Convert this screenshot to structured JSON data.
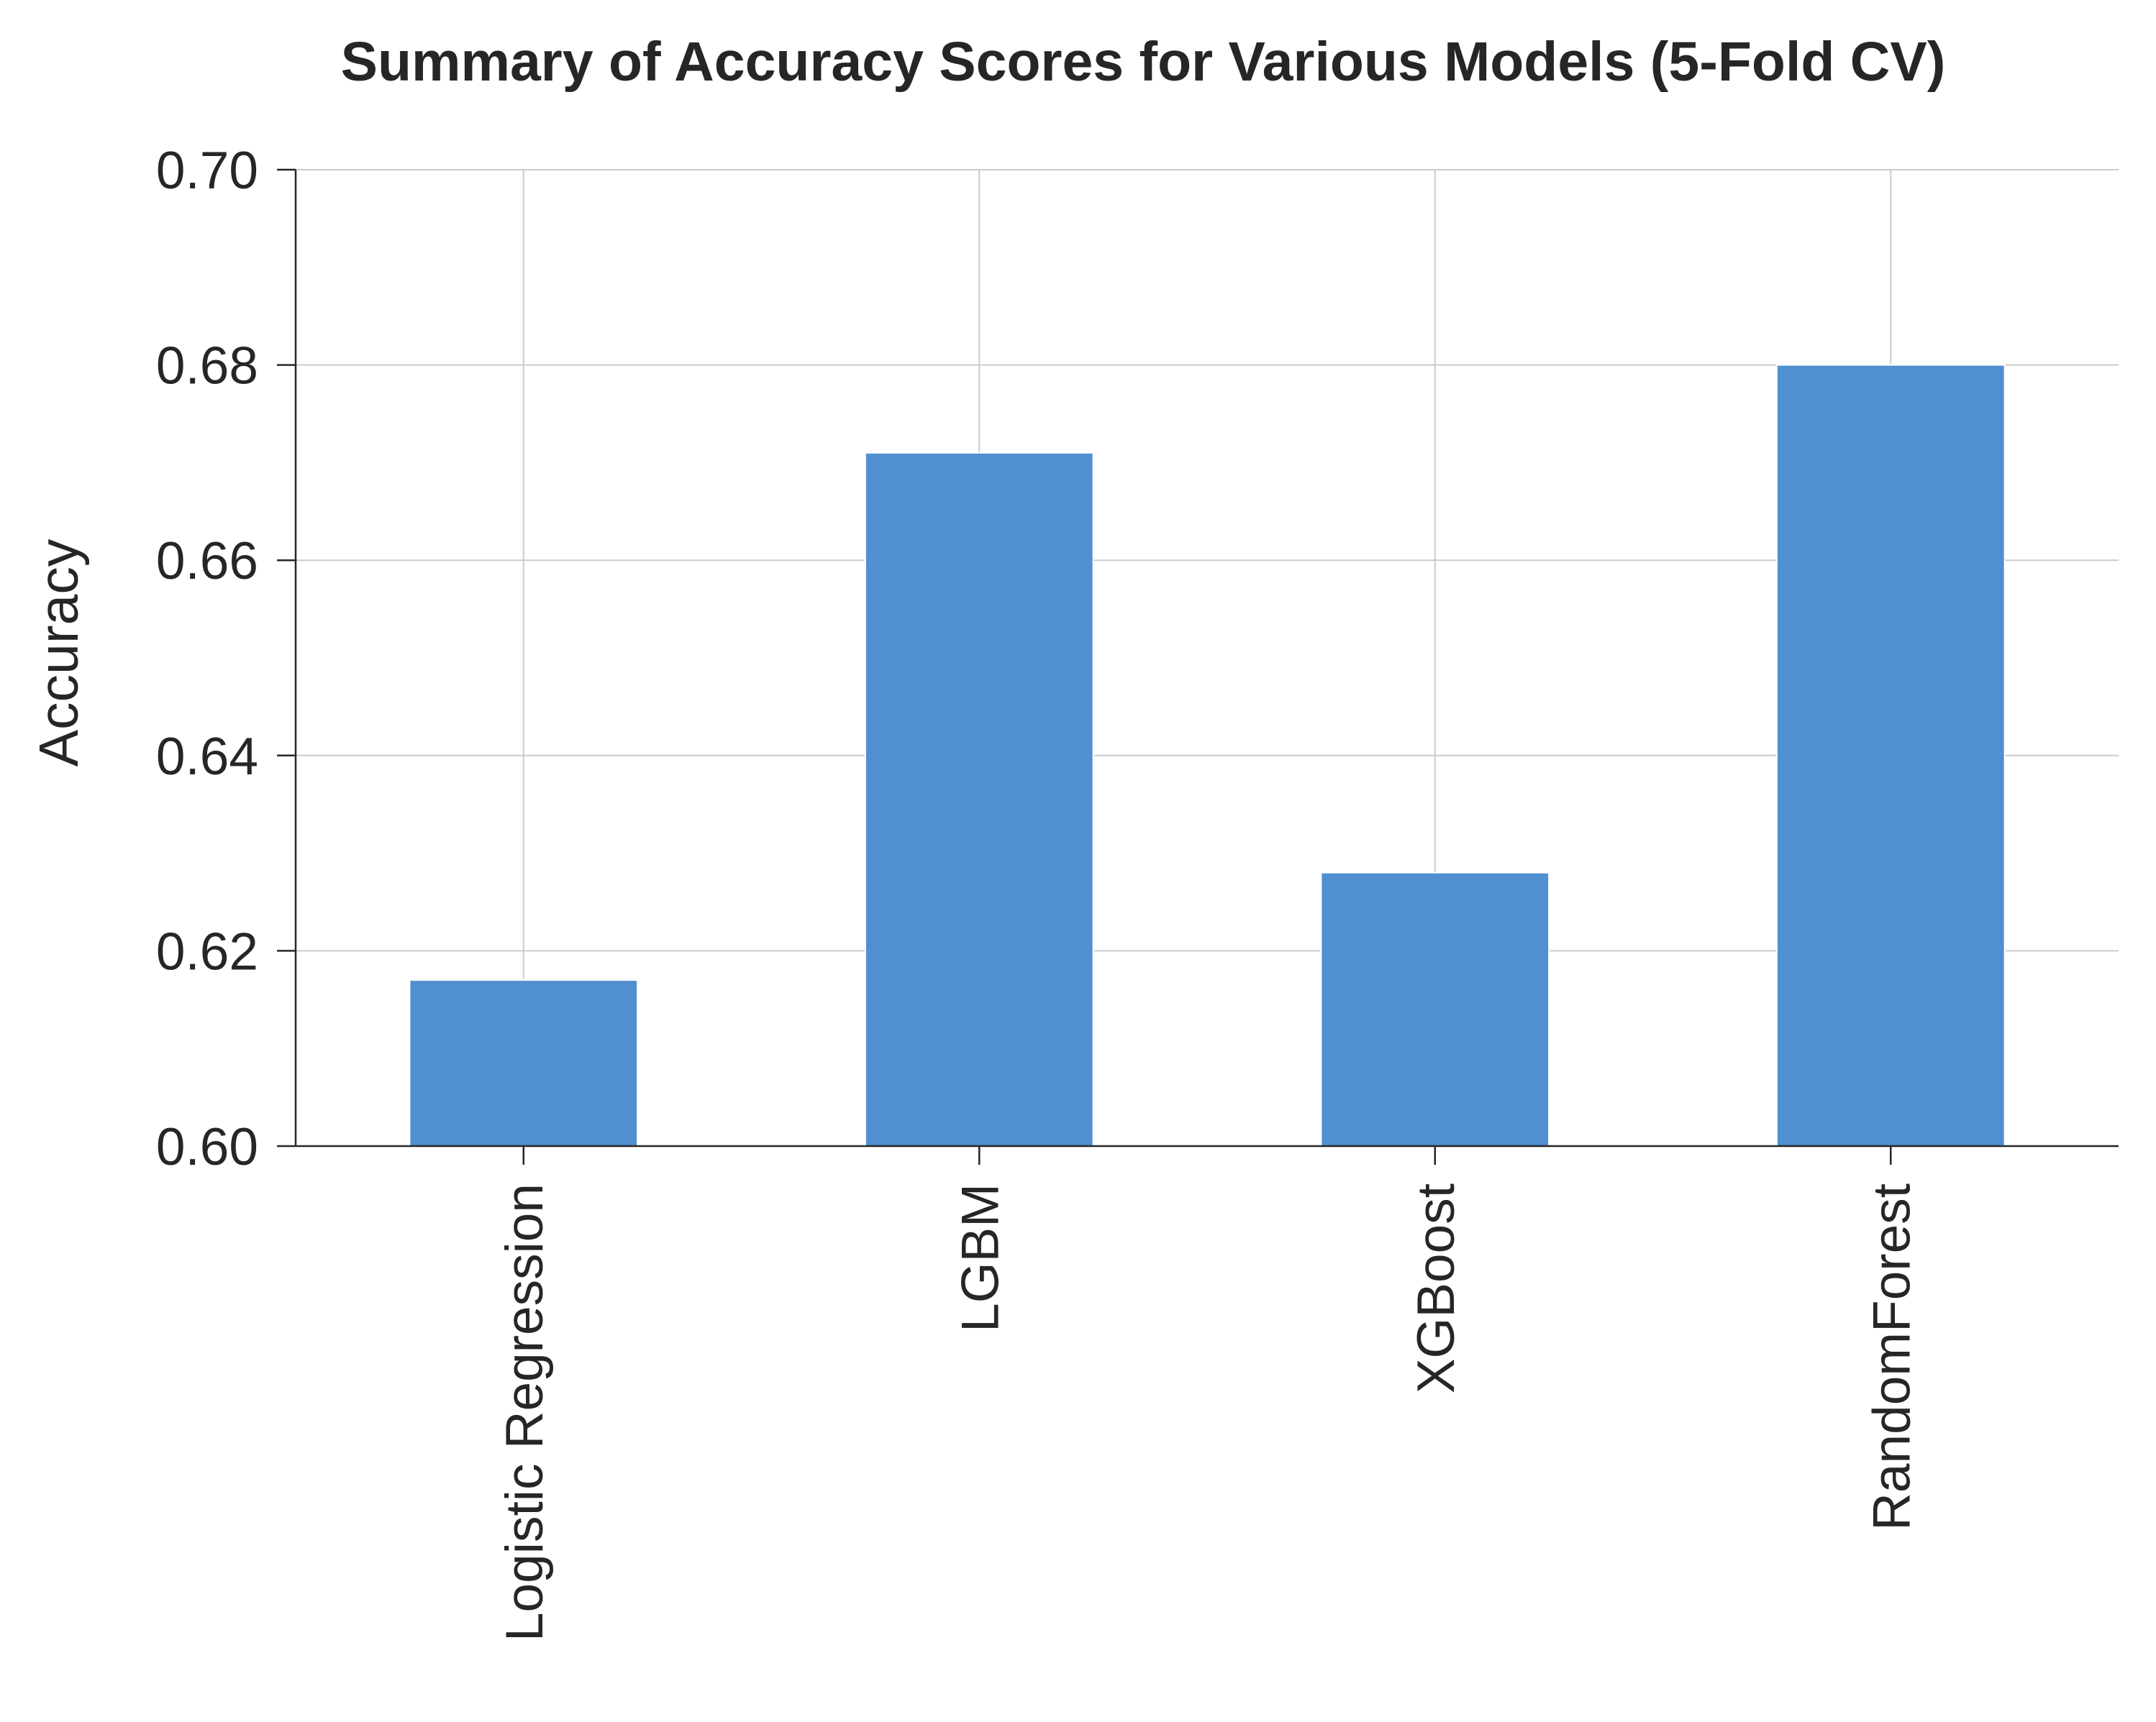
{
  "chart_data": {
    "type": "bar",
    "title": "Summary of Accuracy Scores for Various Models (5-Fold CV)",
    "xlabel": "",
    "ylabel": "Accuracy",
    "categories": [
      "Logistic Regression",
      "LGBM",
      "XGBoost",
      "RandomForest"
    ],
    "values": [
      0.617,
      0.671,
      0.628,
      0.68
    ],
    "ylim": [
      0.6,
      0.7
    ],
    "yticks": [
      "0.60",
      "0.62",
      "0.64",
      "0.66",
      "0.68",
      "0.70"
    ],
    "grid": true,
    "bar_color": "#508fd0",
    "axis_color": "#262626",
    "grid_color": "#cccccc"
  }
}
